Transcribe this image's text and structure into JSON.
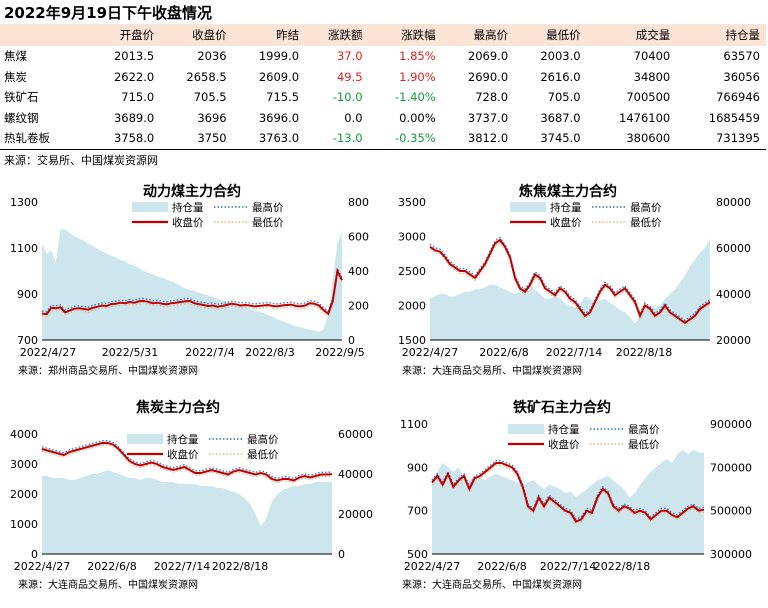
{
  "title": "2022年9月19日下午收盘情况",
  "table": {
    "headers": [
      "",
      "开盘价",
      "收盘价",
      "昨结",
      "涨跌额",
      "涨跌幅",
      "最高价",
      "最低价",
      "成交量",
      "持仓量"
    ],
    "rows": [
      {
        "name": "焦煤",
        "open": "2013.5",
        "close": "2036",
        "prev": "1999.0",
        "chg": "37.0",
        "pct": "1.85%",
        "high": "2069.0",
        "low": "2003.0",
        "vol": "70400",
        "oi": "63570",
        "dir": "up"
      },
      {
        "name": "焦炭",
        "open": "2622.0",
        "close": "2658.5",
        "prev": "2609.0",
        "chg": "49.5",
        "pct": "1.90%",
        "high": "2690.0",
        "low": "2616.0",
        "vol": "34800",
        "oi": "36056",
        "dir": "up"
      },
      {
        "name": "铁矿石",
        "open": "715.0",
        "close": "705.5",
        "prev": "715.5",
        "chg": "-10.0",
        "pct": "-1.40%",
        "high": "728.0",
        "low": "705.0",
        "vol": "700500",
        "oi": "766946",
        "dir": "dn"
      },
      {
        "name": "螺纹钢",
        "open": "3689.0",
        "close": "3696",
        "prev": "3696.0",
        "chg": "0.0",
        "pct": "0.00%",
        "high": "3737.0",
        "low": "3687.0",
        "vol": "1476100",
        "oi": "1685459",
        "dir": ""
      },
      {
        "name": "热轧卷板",
        "open": "3758.0",
        "close": "3750",
        "prev": "3763.0",
        "chg": "-13.0",
        "pct": "-0.35%",
        "high": "3812.0",
        "low": "3745.0",
        "vol": "380600",
        "oi": "731395",
        "dir": "dn"
      }
    ],
    "source": "来源：交易所、中国煤炭资源网"
  },
  "colors": {
    "oi": "#cde6ee",
    "close": "#c00000",
    "high": "#2e75b6",
    "low": "#f4b183",
    "up": "#e02020",
    "down": "#129b3a"
  },
  "chart_data": [
    {
      "type": "line",
      "title": "动力煤主力合约",
      "x_ticks": [
        "2022/4/27",
        "2022/5/31",
        "2022/7/4",
        "2022/8/3",
        "2022/9/5"
      ],
      "ylim": [
        700,
        1300
      ],
      "y_ticks": [
        "700",
        "900",
        "1100",
        "1300"
      ],
      "y2lim": [
        0,
        800
      ],
      "y2_ticks": [
        "0",
        "200",
        "400",
        "600",
        "800"
      ],
      "legend": [
        "持仓量",
        "最高价",
        "收盘价",
        "最低价"
      ],
      "series": [
        {
          "name": "收盘价",
          "axis": "left",
          "values": [
            815,
            812,
            840,
            838,
            842,
            820,
            828,
            836,
            838,
            835,
            832,
            840,
            845,
            850,
            848,
            856,
            858,
            862,
            860,
            865,
            862,
            868,
            870,
            866,
            860,
            862,
            858,
            855,
            860,
            862,
            865,
            868,
            870,
            860,
            856,
            852,
            848,
            850,
            845,
            848,
            852,
            858,
            855,
            850,
            852,
            850,
            846,
            848,
            850,
            852,
            848,
            846,
            850,
            852,
            854,
            848,
            846,
            850,
            860,
            858,
            850,
            830,
            815,
            870,
            1000,
            960
          ]
        },
        {
          "name": "持仓量",
          "axis": "right",
          "values": [
            560,
            500,
            520,
            450,
            640,
            640,
            620,
            600,
            590,
            575,
            560,
            545,
            530,
            515,
            500,
            490,
            480,
            465,
            455,
            440,
            430,
            415,
            400,
            390,
            380,
            370,
            360,
            350,
            340,
            330,
            315,
            300,
            290,
            285,
            275,
            265,
            260,
            250,
            240,
            230,
            225,
            215,
            210,
            200,
            190,
            180,
            170,
            165,
            155,
            145,
            135,
            120,
            110,
            100,
            90,
            80,
            75,
            65,
            60,
            55,
            50,
            60,
            150,
            350,
            560,
            620
          ]
        }
      ],
      "source": "来源：郑州商品交易所、中国煤炭资源网"
    },
    {
      "type": "line",
      "title": "炼焦煤主力合约",
      "x_ticks": [
        "2022/4/27",
        "2022/6/8",
        "2022/7/14",
        "2022/8/18"
      ],
      "ylim": [
        1500,
        3500
      ],
      "y_ticks": [
        "1500",
        "2000",
        "2500",
        "3000",
        "3500"
      ],
      "y2lim": [
        20000,
        80000
      ],
      "y2_ticks": [
        "20000",
        "40000",
        "60000",
        "80000"
      ],
      "legend": [
        "持仓量",
        "最高价",
        "收盘价",
        "最低价"
      ],
      "series": [
        {
          "name": "收盘价",
          "axis": "left",
          "values": [
            2850,
            2800,
            2780,
            2700,
            2600,
            2550,
            2500,
            2500,
            2450,
            2400,
            2500,
            2600,
            2750,
            2900,
            2950,
            2850,
            2700,
            2400,
            2250,
            2200,
            2300,
            2450,
            2400,
            2250,
            2200,
            2150,
            2250,
            2200,
            2100,
            2050,
            1950,
            1850,
            1900,
            2050,
            2200,
            2300,
            2250,
            2150,
            2200,
            2250,
            2150,
            2050,
            1850,
            2000,
            1950,
            1850,
            1900,
            2000,
            1900,
            1850,
            1800,
            1750,
            1800,
            1850,
            1950,
            2000,
            2050
          ]
        },
        {
          "name": "持仓量",
          "axis": "right",
          "values": [
            38000,
            39000,
            40000,
            40000,
            39000,
            39000,
            40000,
            41000,
            41000,
            42000,
            42000,
            43000,
            44000,
            44000,
            43000,
            42000,
            41000,
            40000,
            41000,
            43000,
            44000,
            42000,
            40000,
            38000,
            38000,
            39000,
            38000,
            36000,
            35000,
            34000,
            36000,
            39000,
            38000,
            36000,
            37000,
            38000,
            36000,
            35000,
            33000,
            32000,
            30000,
            27000,
            31000,
            33000,
            35000,
            34000,
            35000,
            38000,
            40000,
            42000,
            45000,
            48000,
            52000,
            55000,
            58000,
            60000,
            64000
          ]
        }
      ],
      "source": "来源：大连商品交易所、中国煤炭资源网"
    },
    {
      "type": "line",
      "title": "焦炭主力合约",
      "x_ticks": [
        "2022/4/27",
        "2022/6/8",
        "2022/7/14",
        "2022/8/18"
      ],
      "ylim": [
        0,
        4000
      ],
      "y_ticks": [
        "0",
        "1000",
        "2000",
        "3000",
        "4000"
      ],
      "y2lim": [
        0,
        60000
      ],
      "y2_ticks": [
        "0",
        "20000",
        "40000",
        "60000"
      ],
      "legend": [
        "持仓量",
        "最高价",
        "收盘价",
        "最低价"
      ],
      "series": [
        {
          "name": "收盘价",
          "axis": "left",
          "values": [
            3500,
            3450,
            3400,
            3350,
            3300,
            3400,
            3450,
            3500,
            3550,
            3600,
            3650,
            3700,
            3700,
            3650,
            3500,
            3300,
            3100,
            3000,
            2950,
            3000,
            3050,
            3000,
            2900,
            2850,
            2800,
            2850,
            2900,
            2800,
            2700,
            2700,
            2750,
            2800,
            2750,
            2700,
            2650,
            2750,
            2800,
            2750,
            2700,
            2650,
            2700,
            2650,
            2500,
            2450,
            2500,
            2500,
            2450,
            2550,
            2600,
            2550,
            2600,
            2650,
            2650,
            2660
          ]
        },
        {
          "name": "持仓量",
          "axis": "right",
          "values": [
            39000,
            39000,
            38000,
            38000,
            38000,
            37000,
            37000,
            38000,
            39000,
            40000,
            40000,
            41000,
            42000,
            41000,
            40000,
            39000,
            38000,
            38000,
            37000,
            38000,
            38000,
            37000,
            36000,
            36000,
            36000,
            35000,
            35000,
            35000,
            35000,
            34000,
            34000,
            34000,
            33000,
            33000,
            32000,
            31000,
            30000,
            28000,
            25000,
            20000,
            14000,
            18000,
            26000,
            30000,
            32000,
            33000,
            34000,
            34000,
            35000,
            35000,
            36000,
            36000,
            36000,
            36000
          ]
        }
      ],
      "source": "来源：大连商品交易所、中国煤炭资源网"
    },
    {
      "type": "line",
      "title": "铁矿石主力合约",
      "x_ticks": [
        "2022/4/27",
        "2022/6/8",
        "2022/7/14",
        "2022/8/18"
      ],
      "ylim": [
        500,
        1100
      ],
      "y_ticks": [
        "500",
        "700",
        "900",
        "1100"
      ],
      "y2lim": [
        300000,
        900000
      ],
      "y2_ticks": [
        "300000",
        "500000",
        "700000",
        "900000"
      ],
      "legend": [
        "持仓量",
        "最高价",
        "收盘价",
        "最低价"
      ],
      "series": [
        {
          "name": "收盘价",
          "axis": "left",
          "values": [
            830,
            860,
            820,
            870,
            810,
            840,
            860,
            800,
            850,
            860,
            880,
            900,
            920,
            920,
            910,
            900,
            870,
            810,
            720,
            700,
            760,
            720,
            760,
            740,
            720,
            700,
            690,
            650,
            660,
            700,
            690,
            760,
            800,
            780,
            720,
            700,
            720,
            710,
            690,
            700,
            690,
            660,
            680,
            700,
            700,
            680,
            670,
            690,
            710,
            720,
            700,
            705
          ]
        },
        {
          "name": "持仓量",
          "axis": "right",
          "values": [
            650000,
            680000,
            720000,
            700000,
            680000,
            700000,
            650000,
            640000,
            660000,
            650000,
            640000,
            660000,
            670000,
            660000,
            650000,
            640000,
            630000,
            620000,
            630000,
            640000,
            620000,
            600000,
            620000,
            610000,
            600000,
            580000,
            590000,
            560000,
            580000,
            600000,
            620000,
            640000,
            650000,
            660000,
            640000,
            620000,
            600000,
            560000,
            580000,
            620000,
            650000,
            680000,
            700000,
            720000,
            740000,
            720000,
            760000,
            780000,
            760000,
            780000,
            770000,
            766946
          ]
        }
      ],
      "source": "来源：大连商品交易所、中国煤炭资源网"
    }
  ]
}
